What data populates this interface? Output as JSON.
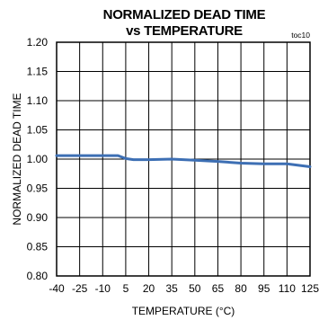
{
  "chart_data": {
    "type": "line",
    "title": "NORMALIZED DEAD TIME",
    "subtitle": "vs TEMPERATURE",
    "figure_code": "toc10",
    "xlabel": "TEMPERATURE (°C)",
    "ylabel": "NORMALIZED DEAD TIME",
    "xlim": [
      -40,
      125
    ],
    "ylim": [
      0.8,
      1.2
    ],
    "x_ticks": [
      "-40",
      "-25",
      "-10",
      "5",
      "20",
      "35",
      "50",
      "65",
      "80",
      "95",
      "110",
      "125"
    ],
    "y_ticks": [
      "0.80",
      "0.85",
      "0.90",
      "0.95",
      "1.00",
      "1.05",
      "1.10",
      "1.15",
      "1.20"
    ],
    "grid": true,
    "line_color": "#3d6fb4",
    "series": [
      {
        "x": [
          -40,
          -25,
          -10,
          0,
          5,
          10,
          20,
          35,
          50,
          65,
          80,
          95,
          110,
          125
        ],
        "y": [
          1.006,
          1.006,
          1.006,
          1.006,
          1.001,
          0.999,
          0.999,
          1.0,
          0.998,
          0.996,
          0.993,
          0.992,
          0.992,
          0.987
        ]
      }
    ]
  }
}
